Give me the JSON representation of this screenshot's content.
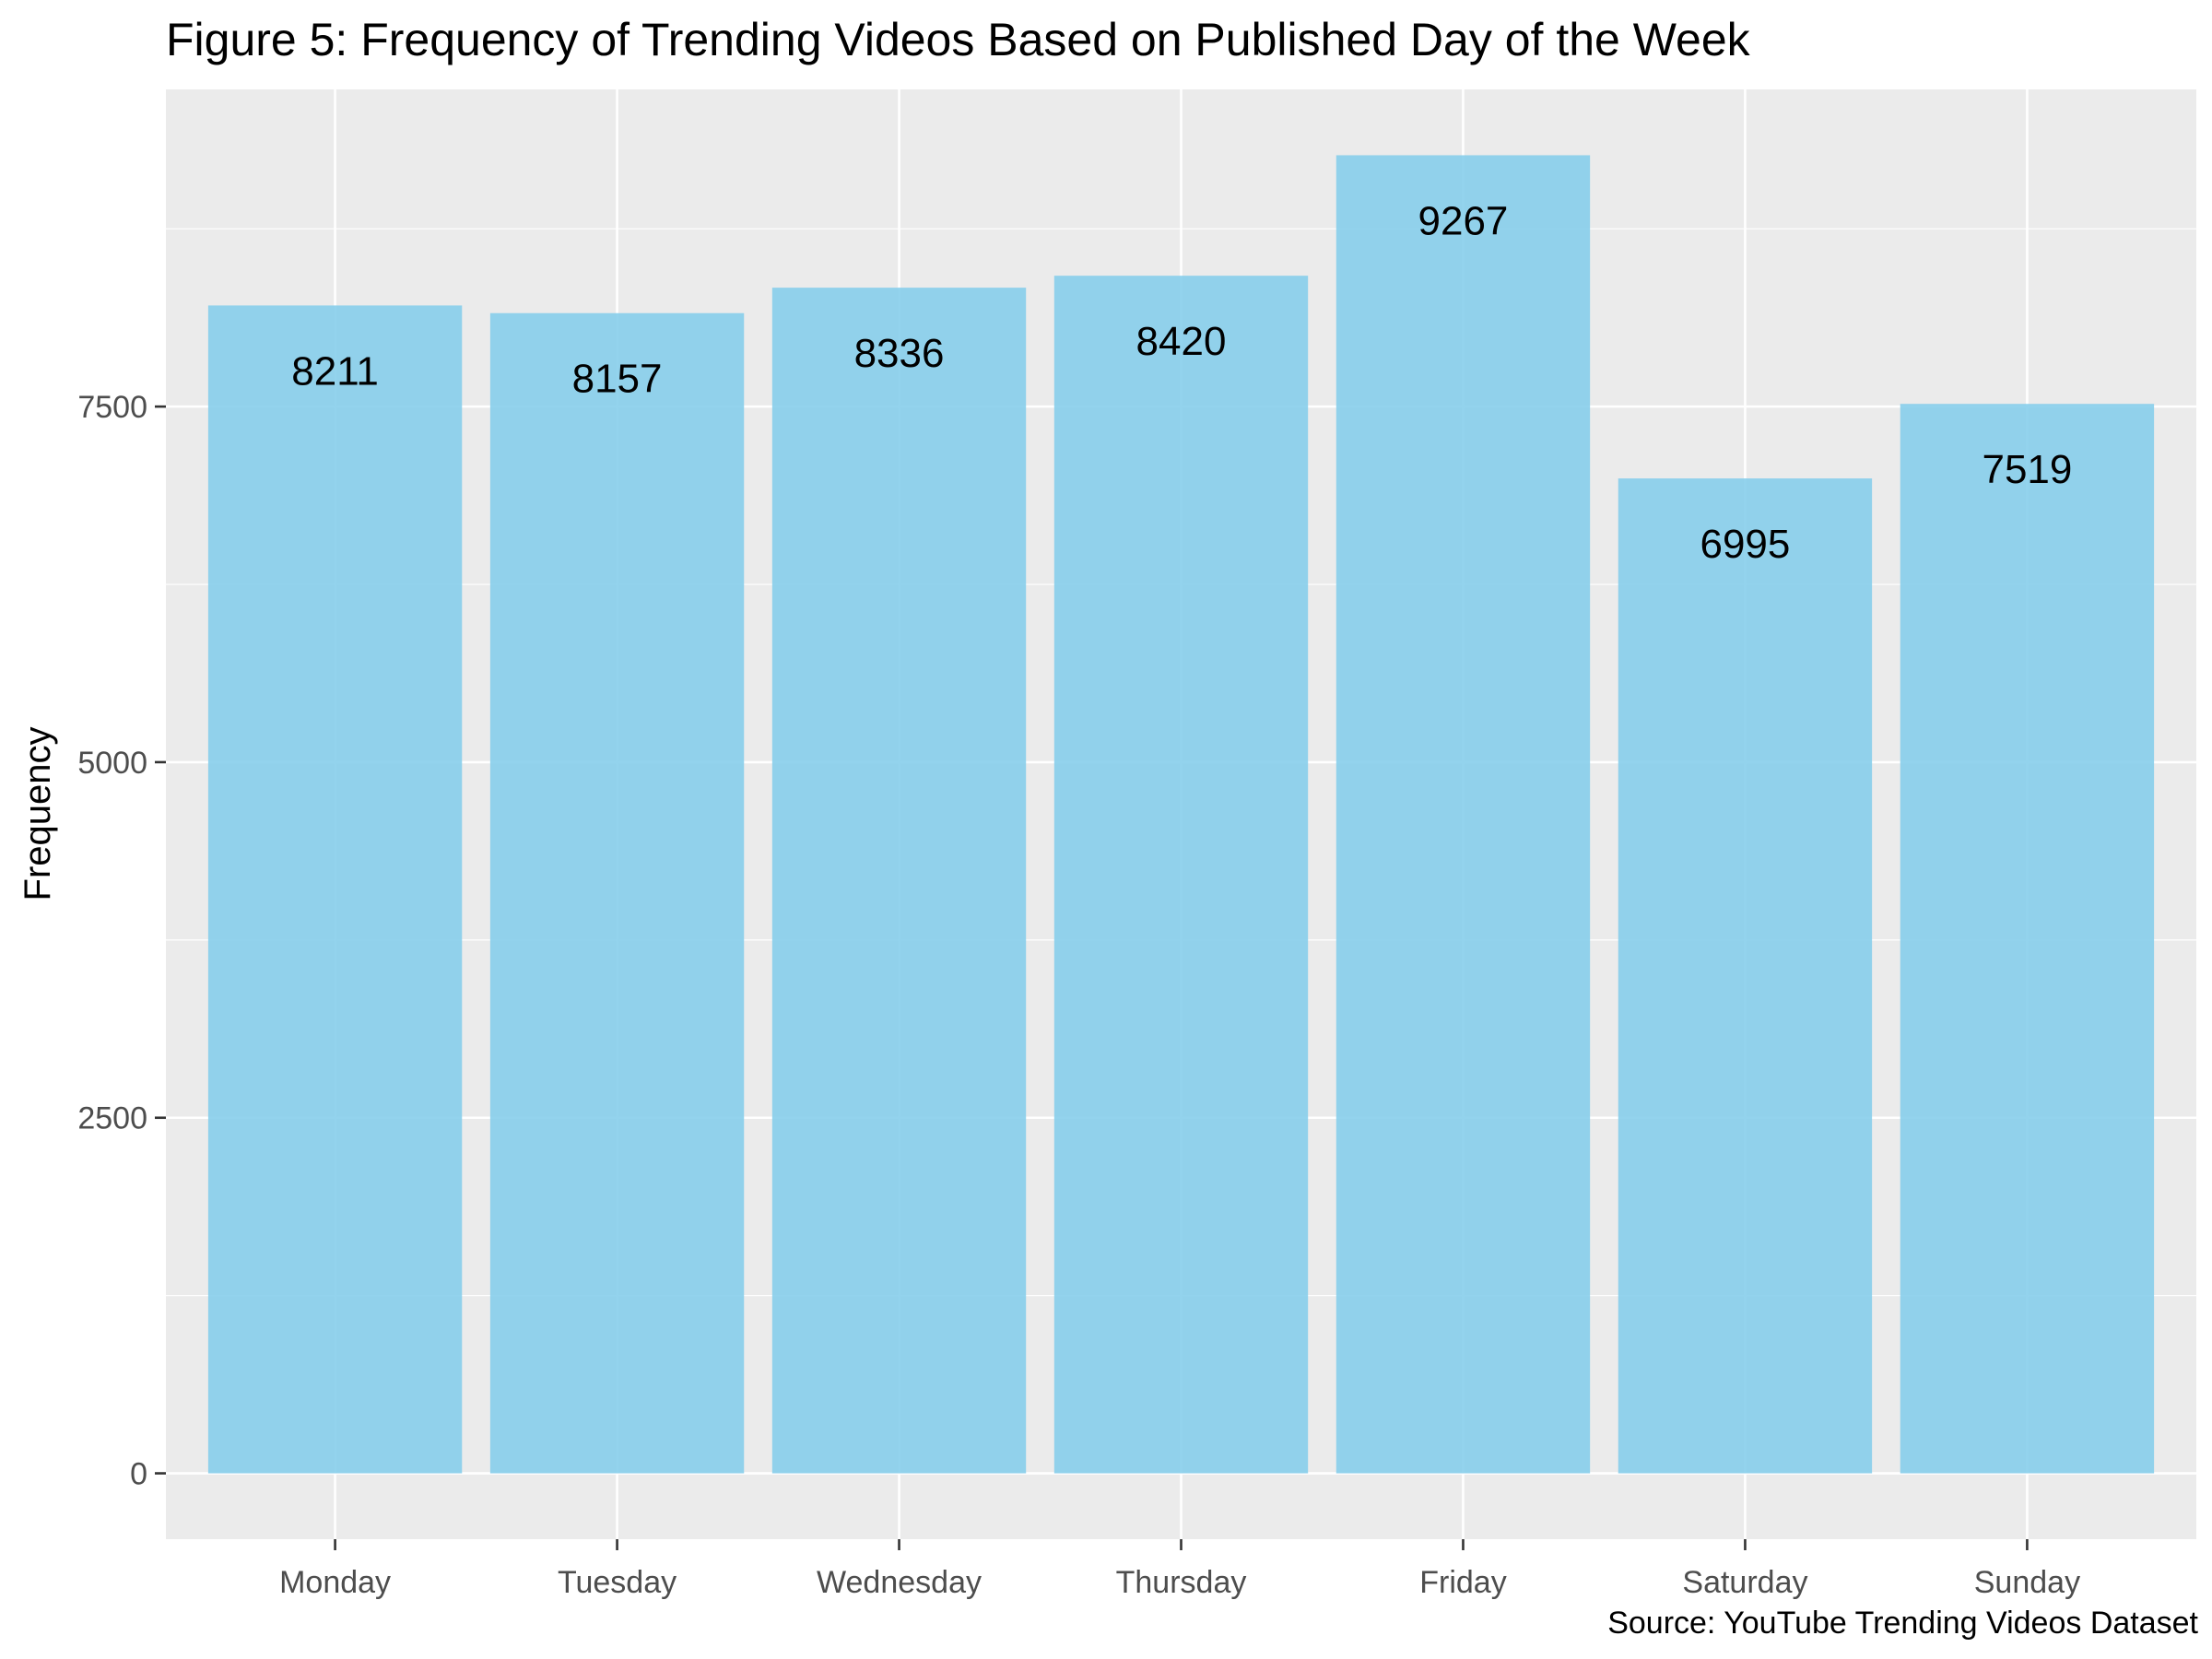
{
  "chart_data": {
    "type": "bar",
    "title": "Figure 5: Frequency of Trending Videos Based on Published Day of the Week",
    "xlabel": "",
    "ylabel": "Frequency",
    "caption": "Source: YouTube Trending Videos Dataset",
    "categories": [
      "Monday",
      "Tuesday",
      "Wednesday",
      "Thursday",
      "Friday",
      "Saturday",
      "Sunday"
    ],
    "values": [
      8211,
      8157,
      8336,
      8420,
      9267,
      6995,
      7519
    ],
    "data_labels": [
      "8211",
      "8157",
      "8336",
      "8420",
      "9267",
      "6995",
      "7519"
    ],
    "y_ticks": [
      0,
      2500,
      5000,
      7500
    ],
    "y_tick_labels": [
      "0",
      "2500",
      "5000",
      "7500"
    ],
    "ylim": [
      -463,
      9730
    ],
    "grid": true,
    "legend": "none",
    "colors": {
      "bar": "#87CEEB",
      "panel_background": "#EBEBEB",
      "gridline": "#FFFFFF",
      "tick_text": "#4D4D4D",
      "tick_mark": "#333333",
      "text": "#000000"
    }
  }
}
